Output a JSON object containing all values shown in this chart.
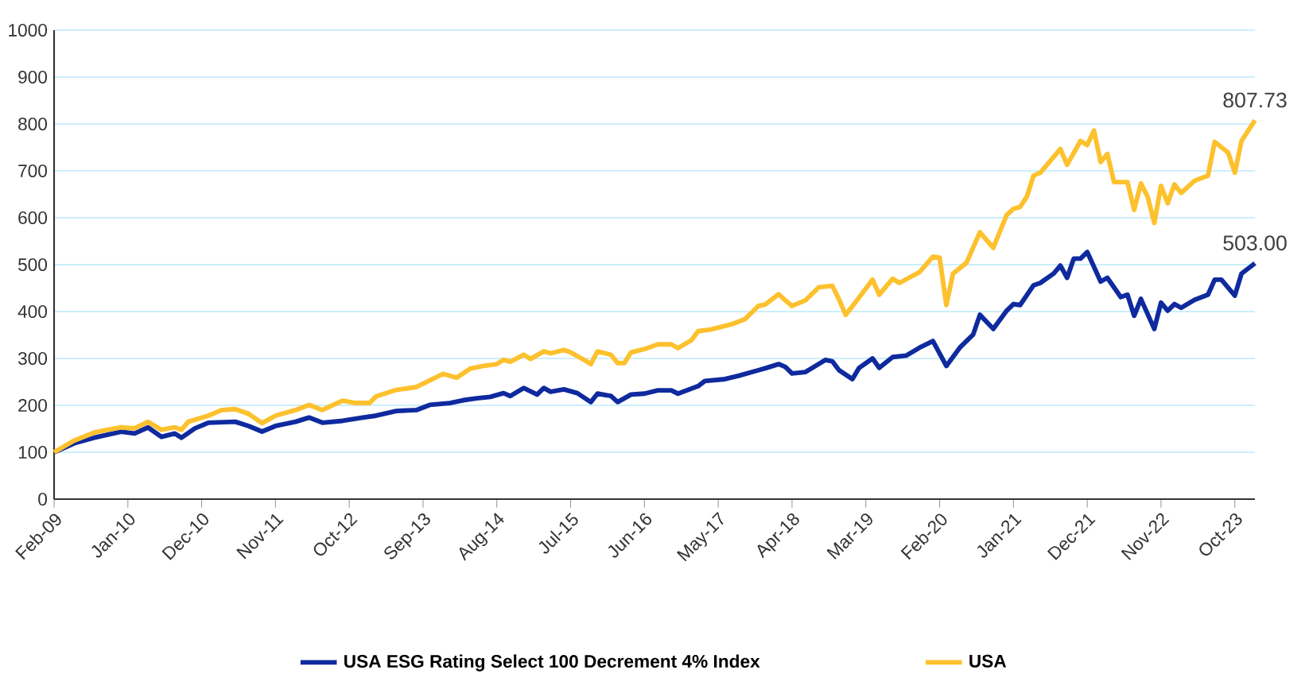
{
  "chart_data": {
    "type": "line",
    "xlim": [
      "2009-02",
      "2024-01"
    ],
    "xticks": [
      {
        "value": "2009-02",
        "label": "Feb-09"
      },
      {
        "value": "2010-01",
        "label": "Jan-10"
      },
      {
        "value": "2010-12",
        "label": "Dec-10"
      },
      {
        "value": "2011-11",
        "label": "Nov-11"
      },
      {
        "value": "2012-10",
        "label": "Oct-12"
      },
      {
        "value": "2013-09",
        "label": "Sep-13"
      },
      {
        "value": "2014-08",
        "label": "Aug-14"
      },
      {
        "value": "2015-07",
        "label": "Jul-15"
      },
      {
        "value": "2016-06",
        "label": "Jun-16"
      },
      {
        "value": "2017-05",
        "label": "May-17"
      },
      {
        "value": "2018-04",
        "label": "Apr-18"
      },
      {
        "value": "2019-03",
        "label": "Mar-19"
      },
      {
        "value": "2020-02",
        "label": "Feb-20"
      },
      {
        "value": "2021-01",
        "label": "Jan-21"
      },
      {
        "value": "2021-12",
        "label": "Dec-21"
      },
      {
        "value": "2022-11",
        "label": "Nov-22"
      },
      {
        "value": "2023-10",
        "label": "Oct-23"
      }
    ],
    "ylim": [
      0,
      1000
    ],
    "yticks": [
      0,
      100,
      200,
      300,
      400,
      500,
      600,
      700,
      800,
      900,
      1000
    ],
    "grid": "y",
    "legend": "bottom",
    "marker": "none",
    "line_style": "solid",
    "series": [
      {
        "name": "USA ESG Rating Select 100 Decrement 4% Index",
        "color": "#0f2a9e",
        "x": [
          "2009-02",
          "2009-05",
          "2009-08",
          "2009-12",
          "2010-02",
          "2010-04",
          "2010-06",
          "2010-08",
          "2010-09",
          "2010-11",
          "2011-01",
          "2011-05",
          "2011-07",
          "2011-09",
          "2011-11",
          "2012-02",
          "2012-04",
          "2012-06",
          "2012-09",
          "2012-12",
          "2013-02",
          "2013-05",
          "2013-08",
          "2013-10",
          "2014-01",
          "2014-03",
          "2014-05",
          "2014-07",
          "2014-09",
          "2014-10",
          "2014-12",
          "2015-02",
          "2015-03",
          "2015-04",
          "2015-06",
          "2015-08",
          "2015-10",
          "2015-11",
          "2016-01",
          "2016-02",
          "2016-04",
          "2016-06",
          "2016-08",
          "2016-10",
          "2016-11",
          "2017-02",
          "2017-03",
          "2017-06",
          "2017-08",
          "2017-11",
          "2017-12",
          "2018-02",
          "2018-03",
          "2018-04",
          "2018-06",
          "2018-09",
          "2018-10",
          "2018-11",
          "2019-01",
          "2019-02",
          "2019-04",
          "2019-05",
          "2019-07",
          "2019-09",
          "2019-11",
          "2020-01",
          "2020-03",
          "2020-05",
          "2020-07",
          "2020-08",
          "2020-10",
          "2020-12",
          "2021-01",
          "2021-02",
          "2021-04",
          "2021-05",
          "2021-07",
          "2021-08",
          "2021-09",
          "2021-10",
          "2021-11",
          "2021-12",
          "2022-02",
          "2022-03",
          "2022-05",
          "2022-06",
          "2022-07",
          "2022-08",
          "2022-10",
          "2022-11",
          "2022-12",
          "2023-01",
          "2023-02",
          "2023-04",
          "2023-06",
          "2023-07",
          "2023-08",
          "2023-10",
          "2023-11",
          "2024-01"
        ],
        "values": [
          100,
          119,
          131,
          144,
          140,
          153,
          133,
          140,
          131,
          151,
          163,
          165,
          156,
          144,
          156,
          165,
          174,
          163,
          167,
          174,
          178,
          188,
          190,
          201,
          205,
          211,
          215,
          218,
          226,
          220,
          237,
          223,
          237,
          229,
          234,
          226,
          207,
          225,
          220,
          207,
          223,
          225,
          232,
          232,
          225,
          241,
          252,
          256,
          263,
          275,
          279,
          288,
          282,
          268,
          271,
          297,
          294,
          275,
          256,
          280,
          300,
          280,
          303,
          306,
          323,
          337,
          284,
          323,
          351,
          393,
          363,
          402,
          416,
          414,
          456,
          461,
          481,
          498,
          472,
          513,
          513,
          527,
          464,
          472,
          431,
          436,
          391,
          427,
          363,
          419,
          402,
          416,
          408,
          425,
          436,
          468,
          468,
          434,
          481,
          503
        ]
      },
      {
        "name": "USA",
        "color": "#fdc12e",
        "x": [
          "2009-02",
          "2009-05",
          "2009-08",
          "2009-10",
          "2009-12",
          "2010-02",
          "2010-04",
          "2010-06",
          "2010-08",
          "2010-09",
          "2010-10",
          "2011-01",
          "2011-03",
          "2011-05",
          "2011-07",
          "2011-09",
          "2011-11",
          "2012-02",
          "2012-04",
          "2012-06",
          "2012-07",
          "2012-09",
          "2012-11",
          "2013-01",
          "2013-02",
          "2013-05",
          "2013-08",
          "2013-10",
          "2013-12",
          "2014-02",
          "2014-04",
          "2014-06",
          "2014-08",
          "2014-09",
          "2014-10",
          "2014-12",
          "2015-01",
          "2015-03",
          "2015-04",
          "2015-06",
          "2015-07",
          "2015-09",
          "2015-10",
          "2015-11",
          "2016-01",
          "2016-02",
          "2016-03",
          "2016-04",
          "2016-06",
          "2016-08",
          "2016-10",
          "2016-11",
          "2017-01",
          "2017-02",
          "2017-04",
          "2017-07",
          "2017-09",
          "2017-11",
          "2017-12",
          "2018-02",
          "2018-03",
          "2018-04",
          "2018-06",
          "2018-08",
          "2018-10",
          "2018-11",
          "2018-12",
          "2019-02",
          "2019-04",
          "2019-05",
          "2019-07",
          "2019-08",
          "2019-11",
          "2020-01",
          "2020-02",
          "2020-03",
          "2020-04",
          "2020-06",
          "2020-08",
          "2020-10",
          "2020-12",
          "2021-01",
          "2021-02",
          "2021-03",
          "2021-04",
          "2021-05",
          "2021-08",
          "2021-09",
          "2021-11",
          "2021-12",
          "2022-01",
          "2022-02",
          "2022-03",
          "2022-04",
          "2022-06",
          "2022-07",
          "2022-08",
          "2022-09",
          "2022-10",
          "2022-11",
          "2022-12",
          "2023-01",
          "2023-02",
          "2023-04",
          "2023-06",
          "2023-07",
          "2023-09",
          "2023-10",
          "2023-11",
          "2024-01"
        ],
        "values": [
          100,
          125,
          142,
          148,
          153,
          151,
          165,
          148,
          153,
          148,
          165,
          178,
          190,
          192,
          182,
          162,
          178,
          190,
          201,
          190,
          197,
          210,
          205,
          205,
          219,
          233,
          239,
          253,
          267,
          259,
          278,
          284,
          288,
          297,
          293,
          308,
          299,
          315,
          311,
          318,
          313,
          297,
          288,
          315,
          308,
          290,
          290,
          313,
          320,
          330,
          330,
          322,
          339,
          358,
          362,
          373,
          384,
          412,
          415,
          437,
          424,
          412,
          424,
          452,
          455,
          426,
          393,
          430,
          468,
          436,
          470,
          461,
          484,
          517,
          515,
          414,
          481,
          504,
          569,
          536,
          606,
          619,
          623,
          645,
          690,
          696,
          747,
          713,
          764,
          755,
          786,
          719,
          736,
          676,
          676,
          617,
          673,
          645,
          589,
          668,
          631,
          671,
          653,
          679,
          690,
          762,
          739,
          696,
          764,
          807.73
        ]
      }
    ],
    "annotations": [
      {
        "text": "807.73",
        "x": "2024-01",
        "y": 807.73
      },
      {
        "text": "503.00",
        "x": "2024-01",
        "y": 503
      }
    ]
  }
}
